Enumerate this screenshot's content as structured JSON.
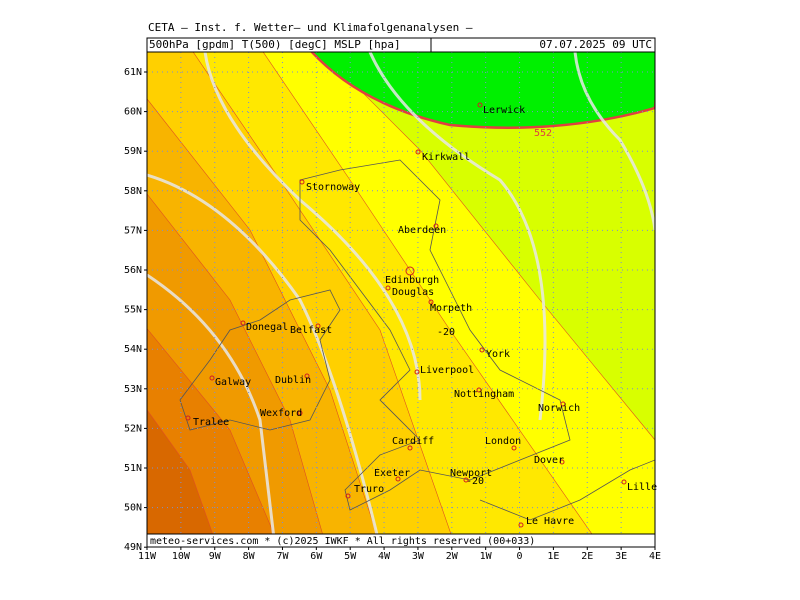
{
  "header": {
    "title": "CETA – Inst. f. Wetter– und Klimafolgenanalysen –",
    "fields": "500hPa [gpdm] T(500) [degC] MSLP [hpa]",
    "date": "07.07.2025 09 UTC"
  },
  "footer": "meteo-services.com * (c)2025 IWKF * All rights reserved (00+033)",
  "axes": {
    "y_labels": [
      "61N",
      "60N",
      "59N",
      "58N",
      "57N",
      "56N",
      "55N",
      "54N",
      "53N",
      "52N",
      "51N",
      "50N",
      "49N"
    ],
    "x_labels": [
      "11W",
      "10W",
      "9W",
      "8W",
      "7W",
      "6W",
      "5W",
      "4W",
      "3W",
      "2W",
      "1W",
      "0",
      "1E",
      "2E",
      "3E",
      "4E"
    ]
  },
  "contour_labels": [
    "552",
    "-20",
    "-20"
  ],
  "cities": [
    "Lerwick",
    "Kirkwall",
    "Stornoway",
    "Aberdeen",
    "Edinburgh",
    "Douglas",
    "Morpeth",
    "Donegal",
    "Belfast",
    "York",
    "Liverpool",
    "Dublin",
    "Galway",
    "Nottingham",
    "Norwich",
    "Wexford",
    "Tralee",
    "Cardiff",
    "London",
    "Dover",
    "Exeter",
    "Newport",
    "Lille",
    "Truro",
    "Le Havre"
  ]
}
